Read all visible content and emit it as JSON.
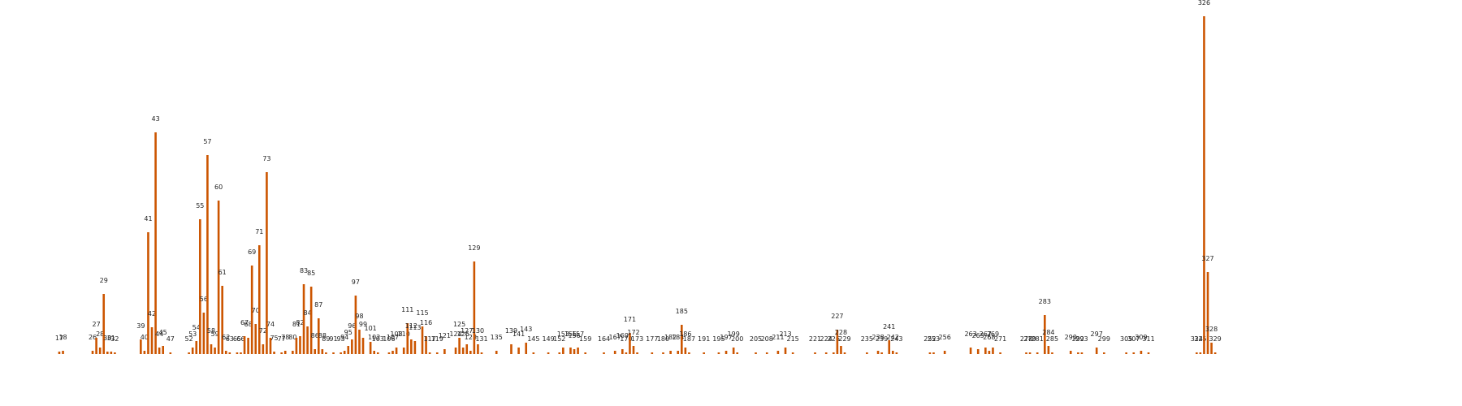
{
  "chart_data": {
    "type": "bar",
    "color": "#cc5500",
    "xlim": [
      1,
      343
    ],
    "ylim": [
      0,
      420
    ],
    "x": [
      17,
      18,
      26,
      27,
      28,
      29,
      30,
      31,
      32,
      39,
      40,
      41,
      42,
      43,
      44,
      45,
      47,
      52,
      53,
      54,
      55,
      56,
      57,
      58,
      59,
      60,
      61,
      62,
      63,
      65,
      66,
      67,
      68,
      69,
      70,
      71,
      72,
      73,
      74,
      75,
      77,
      78,
      80,
      81,
      82,
      83,
      84,
      85,
      86,
      87,
      88,
      89,
      91,
      93,
      94,
      95,
      96,
      97,
      98,
      99,
      101,
      102,
      103,
      106,
      107,
      108,
      110,
      111,
      112,
      113,
      115,
      116,
      117,
      119,
      121,
      124,
      125,
      126,
      127,
      128,
      129,
      130,
      131,
      135,
      139,
      141,
      143,
      145,
      149,
      152,
      153,
      155,
      156,
      157,
      159,
      164,
      167,
      169,
      170,
      171,
      172,
      173,
      177,
      180,
      182,
      184,
      185,
      186,
      187,
      191,
      195,
      197,
      199,
      200,
      205,
      208,
      211,
      213,
      215,
      221,
      224,
      226,
      227,
      228,
      229,
      235,
      238,
      239,
      241,
      242,
      243,
      252,
      253,
      256,
      263,
      265,
      267,
      268,
      269,
      271,
      278,
      279,
      281,
      283,
      284,
      285,
      290,
      292,
      293,
      297,
      299,
      305,
      307,
      309,
      311,
      324,
      325,
      326,
      327,
      328,
      329
    ],
    "values": [
      3,
      4,
      4,
      20,
      8,
      74,
      3,
      3,
      2,
      18,
      4,
      150,
      33,
      273,
      8,
      10,
      2,
      2,
      8,
      16,
      166,
      51,
      245,
      12,
      8,
      189,
      84,
      4,
      2,
      2,
      2,
      22,
      20,
      109,
      37,
      134,
      12,
      224,
      20,
      3,
      2,
      4,
      4,
      20,
      22,
      86,
      34,
      83,
      6,
      44,
      6,
      2,
      2,
      2,
      4,
      10,
      18,
      72,
      30,
      20,
      15,
      4,
      2,
      2,
      4,
      8,
      8,
      38,
      18,
      16,
      34,
      22,
      2,
      2,
      6,
      8,
      20,
      8,
      12,
      4,
      114,
      12,
      2,
      4,
      12,
      8,
      14,
      2,
      2,
      2,
      8,
      8,
      6,
      8,
      2,
      2,
      4,
      6,
      2,
      26,
      10,
      2,
      2,
      2,
      4,
      4,
      36,
      8,
      2,
      2,
      2,
      4,
      8,
      2,
      2,
      2,
      4,
      8,
      2,
      2,
      2,
      2,
      30,
      10,
      2,
      2,
      4,
      2,
      17,
      4,
      2,
      2,
      2,
      4,
      8,
      6,
      8,
      4,
      8,
      2,
      2,
      2,
      2,
      48,
      10,
      2,
      4,
      2,
      2,
      8,
      2,
      2,
      2,
      4,
      2,
      2,
      2,
      416,
      101,
      14,
      2
    ]
  }
}
